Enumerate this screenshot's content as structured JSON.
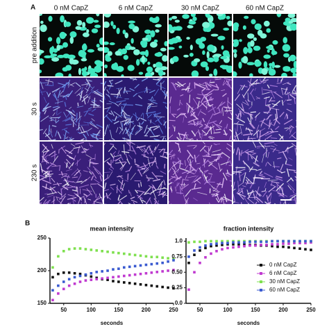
{
  "panel_a": {
    "label": "A",
    "columns": [
      "0 nM CapZ",
      "6 nM CapZ",
      "30 nM CapZ",
      "60 nM CapZ"
    ],
    "rows": [
      "pre addition",
      "30 s",
      "230 s"
    ]
  },
  "panel_b": {
    "label": "B"
  },
  "chart_data": [
    {
      "type": "scatter",
      "title": "mean intensity",
      "x_label": "seconds",
      "x": [
        30,
        40,
        50,
        60,
        70,
        80,
        90,
        100,
        110,
        120,
        130,
        140,
        150,
        160,
        170,
        180,
        190,
        200,
        210,
        220,
        230,
        240,
        250
      ],
      "xlim": [
        25,
        250
      ],
      "xticks": [
        50,
        100,
        150,
        200,
        250
      ],
      "ylim": [
        150,
        250
      ],
      "yticks": [
        150,
        200,
        250
      ],
      "series": [
        {
          "name": "0 nM CapZ",
          "color": "#111111",
          "values": [
            190,
            195,
            197,
            197,
            196,
            195,
            193,
            191,
            189,
            187,
            186,
            184,
            183,
            182,
            181,
            180,
            179,
            178,
            177,
            176,
            175,
            174,
            173
          ]
        },
        {
          "name": "6 nM CapZ",
          "color": "#c03ad0",
          "values": [
            155,
            165,
            172,
            177,
            180,
            183,
            185,
            186,
            187,
            188,
            189,
            190,
            191,
            192,
            193,
            194,
            195,
            196,
            197,
            198,
            199,
            200,
            201
          ]
        },
        {
          "name": "30 nM CapZ",
          "color": "#7fe04f",
          "values": [
            205,
            222,
            230,
            233,
            234,
            234,
            233,
            232,
            231,
            230,
            229,
            228,
            227,
            226,
            225,
            224,
            223,
            222,
            221,
            221,
            220,
            219,
            218
          ]
        },
        {
          "name": "60 nM CapZ",
          "color": "#3a5ad0",
          "values": [
            170,
            177,
            183,
            187,
            190,
            192,
            194,
            196,
            198,
            199,
            200,
            202,
            203,
            205,
            206,
            207,
            208,
            209,
            210,
            211,
            212,
            214,
            216
          ]
        }
      ]
    },
    {
      "type": "scatter",
      "title": "fraction intensity",
      "x_label": "seconds",
      "x": [
        30,
        40,
        50,
        60,
        70,
        80,
        90,
        100,
        110,
        120,
        130,
        140,
        150,
        160,
        170,
        180,
        190,
        200,
        210,
        220,
        230,
        240,
        250
      ],
      "xlim": [
        25,
        250
      ],
      "xticks": [
        50,
        100,
        150,
        200,
        250
      ],
      "ylim": [
        0,
        1.05
      ],
      "yticks": [
        {
          "value": 0,
          "label": "0.0"
        },
        0.25,
        {
          "value": 0.5,
          "label": "0.50"
        },
        0.75,
        {
          "value": 1,
          "label": "1.0"
        }
      ],
      "legend": "center right",
      "series": [
        {
          "name": "0 nM CapZ",
          "color": "#111111",
          "values": [
            0.65,
            0.78,
            0.85,
            0.89,
            0.92,
            0.93,
            0.94,
            0.95,
            0.95,
            0.95,
            0.95,
            0.94,
            0.94,
            0.93,
            0.93,
            0.92,
            0.91,
            0.91,
            0.9,
            0.89,
            0.88,
            0.87,
            0.86
          ]
        },
        {
          "name": "6 nM CapZ",
          "color": "#c03ad0",
          "values": [
            0.22,
            0.5,
            0.65,
            0.74,
            0.8,
            0.84,
            0.87,
            0.89,
            0.9,
            0.91,
            0.92,
            0.93,
            0.93,
            0.94,
            0.94,
            0.95,
            0.95,
            0.96,
            0.96,
            0.97,
            0.97,
            0.97,
            0.98
          ]
        },
        {
          "name": "30 nM CapZ",
          "color": "#7fe04f",
          "values": [
            0.98,
            0.99,
            0.99,
            1,
            1,
            1,
            1,
            1,
            1,
            1,
            1,
            1,
            1,
            1,
            1,
            1,
            1,
            1,
            1,
            1,
            1,
            1,
            1
          ]
        },
        {
          "name": "60 nM CapZ",
          "color": "#3a5ad0",
          "values": [
            0.75,
            0.85,
            0.9,
            0.93,
            0.95,
            0.96,
            0.97,
            0.97,
            0.98,
            0.98,
            0.98,
            0.99,
            0.99,
            0.99,
            0.99,
            1,
            1,
            1,
            1,
            1,
            1,
            1,
            1
          ]
        }
      ]
    }
  ]
}
